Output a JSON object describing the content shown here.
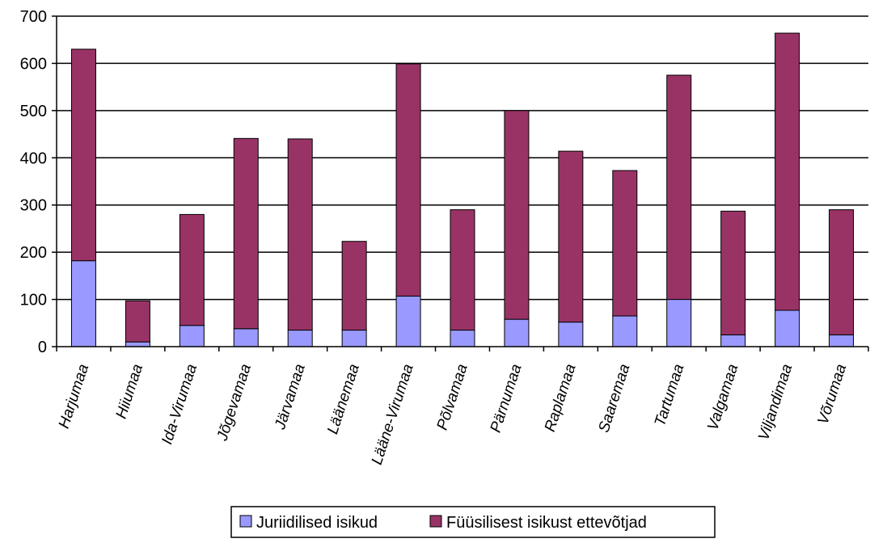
{
  "chart_data": {
    "type": "bar",
    "stacked": true,
    "categories": [
      "Harjumaa",
      "Hiiumaa",
      "Ida-Virumaa",
      "Jõgevamaa",
      "Järvamaa",
      "Läänemaa",
      "Lääne-Virumaa",
      "Põlvamaa",
      "Pärnumaa",
      "Raplamaa",
      "Saaremaa",
      "Tartumaa",
      "Valgamaa",
      "Viljandimaa",
      "Võrumaa"
    ],
    "series": [
      {
        "name": "Juriidilised isikud",
        "color": "#9999ff",
        "values": [
          182,
          10,
          45,
          38,
          35,
          35,
          107,
          35,
          58,
          52,
          65,
          100,
          25,
          77,
          25
        ]
      },
      {
        "name": "Füüsilisest isikust ettevõtjad",
        "color": "#993366",
        "values": [
          448,
          87,
          235,
          403,
          405,
          188,
          492,
          255,
          442,
          362,
          308,
          475,
          262,
          587,
          265
        ]
      }
    ],
    "yticks": [
      0,
      100,
      200,
      300,
      400,
      500,
      600,
      700
    ],
    "ylim": [
      0,
      700
    ],
    "grid": true,
    "legend_position": "bottom",
    "title": "",
    "xlabel": "",
    "ylabel": ""
  }
}
